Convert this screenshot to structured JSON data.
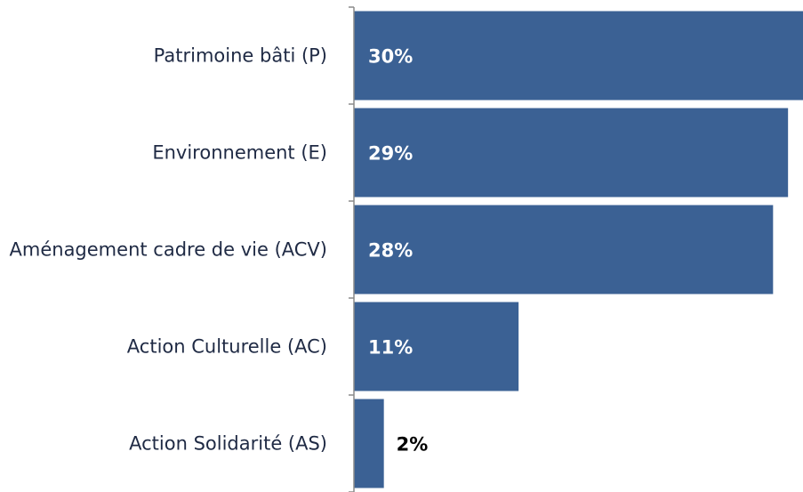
{
  "chart_data": {
    "type": "bar",
    "orientation": "horizontal",
    "categories": [
      "Patrimoine bâti (P)",
      "Environnement (E)",
      "Aménagement cadre de vie (ACV)",
      "Action Culturelle (AC)",
      "Action Solidarité (AS)"
    ],
    "values": [
      30,
      29,
      28,
      11,
      2
    ],
    "value_labels": [
      "30%",
      "29%",
      "28%",
      "11%",
      "2%"
    ],
    "color": "#3b6194",
    "xlim": [
      0,
      30
    ]
  }
}
